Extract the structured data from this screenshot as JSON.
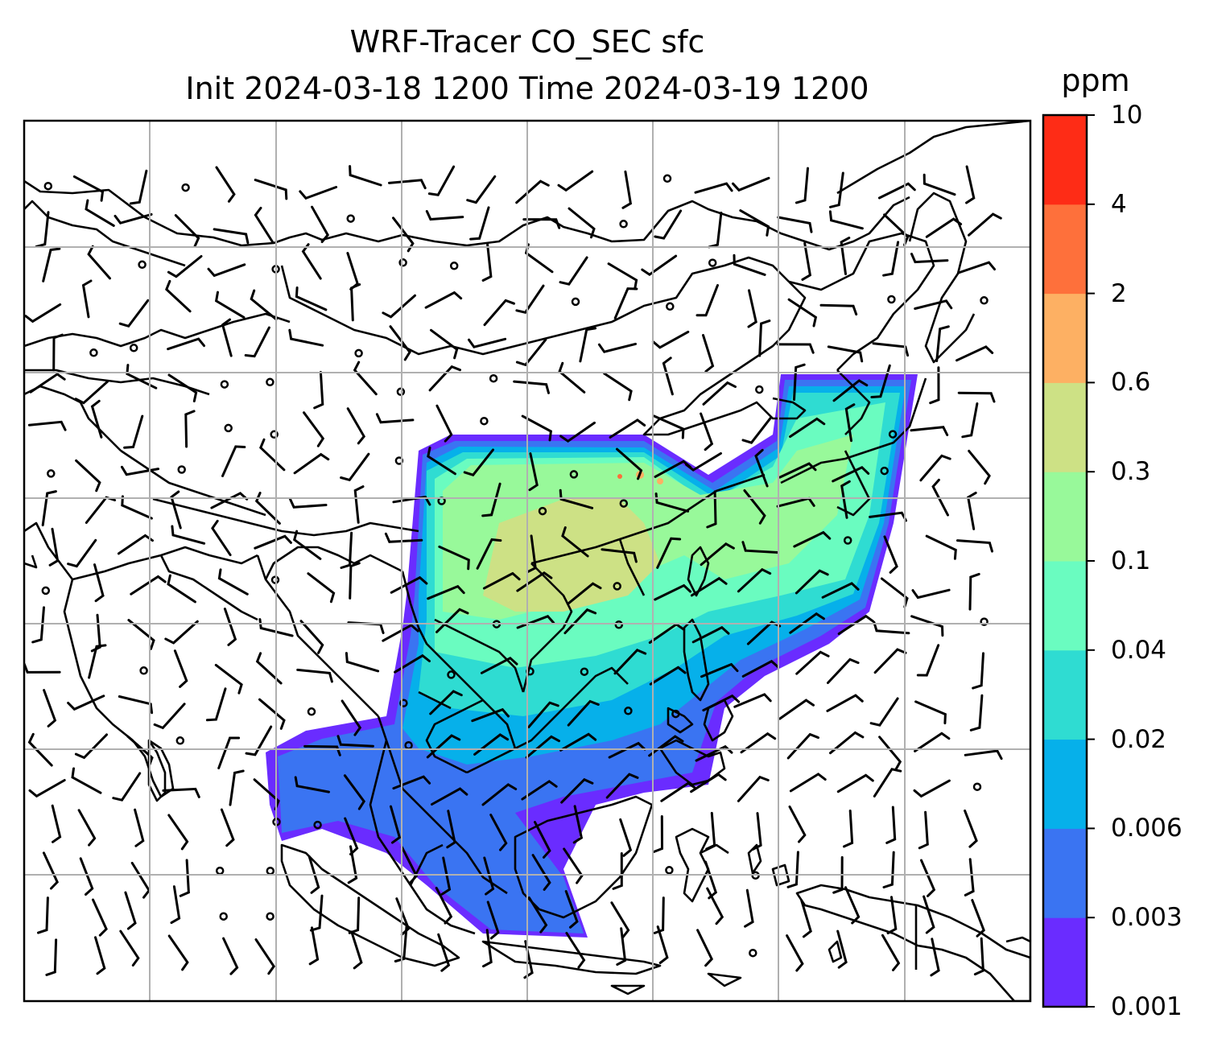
{
  "title": {
    "line1": "WRF-Tracer CO_SEC sfc",
    "line2": "Init 2024-03-18 1200 Time 2024-03-19 1200"
  },
  "colorbar": {
    "unit": "ppm",
    "ticks": [
      "0.001",
      "0.003",
      "0.006",
      "0.02",
      "0.04",
      "0.1",
      "0.3",
      "0.6",
      "2",
      "4",
      "10"
    ],
    "colors": [
      "#6a2cff",
      "#3a74f2",
      "#06b0ea",
      "#2fdcd2",
      "#6afcc0",
      "#98f99a",
      "#cde185",
      "#fdb063",
      "#fe703b",
      "#fe2c16"
    ]
  },
  "map": {
    "variable": "CO_SEC",
    "level": "sfc",
    "gridlines": true,
    "wind_barbs": true,
    "coastlines": true
  }
}
